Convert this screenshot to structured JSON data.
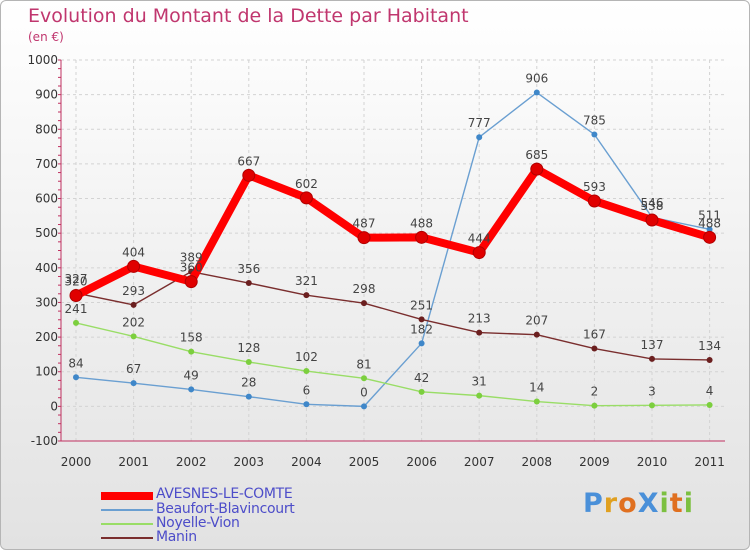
{
  "chart_data": {
    "type": "line",
    "title": "Evolution du Montant de la Dette par Habitant",
    "ylabel": "(en €)",
    "xlabel": "",
    "categories": [
      "2000",
      "2001",
      "2002",
      "2003",
      "2004",
      "2005",
      "2006",
      "2007",
      "2008",
      "2009",
      "2010",
      "2011"
    ],
    "ylim": [
      -100,
      1000
    ],
    "yticks": [
      -100,
      0,
      100,
      200,
      300,
      400,
      500,
      600,
      700,
      800,
      900,
      1000
    ],
    "grid": true,
    "legend_position": "bottom-left",
    "series": [
      {
        "name": "AVESNES-LE-COMTE",
        "color": "#ff0000",
        "marker_color": "#e00000",
        "weight": "thick",
        "values": [
          320,
          404,
          360,
          667,
          602,
          487,
          488,
          444,
          685,
          593,
          538,
          488
        ],
        "labels": [
          "320",
          "404",
          "360",
          "667",
          "602",
          "487",
          "488",
          "444",
          "685",
          "593",
          "538",
          "488"
        ]
      },
      {
        "name": "Beaufort-Blavincourt",
        "color": "#6a9fd1",
        "marker_color": "#3f87c9",
        "weight": "thin",
        "values": [
          84,
          67,
          49,
          28,
          6,
          0,
          182,
          777,
          906,
          785,
          546,
          511
        ],
        "labels": [
          "84",
          "67",
          "49",
          "28",
          "6",
          "0",
          "182",
          "777",
          "906",
          "785",
          "546",
          "511"
        ]
      },
      {
        "name": "Noyelle-Vion",
        "color": "#99dd66",
        "marker_color": "#7ccf3e",
        "weight": "thin",
        "values": [
          241,
          202,
          158,
          128,
          102,
          81,
          42,
          31,
          14,
          2,
          3,
          4
        ],
        "labels": [
          "241",
          "202",
          "158",
          "128",
          "102",
          "81",
          "42",
          "31",
          "14",
          "2",
          "3",
          "4"
        ]
      },
      {
        "name": "Manin",
        "color": "#7a2e2e",
        "marker_color": "#6b1f1f",
        "weight": "thin",
        "values": [
          327,
          293,
          389,
          356,
          321,
          298,
          251,
          213,
          207,
          167,
          137,
          134
        ],
        "labels": [
          "327",
          "293",
          "389",
          "356",
          "321",
          "298",
          "251",
          "213",
          "207",
          "167",
          "137",
          "134"
        ]
      }
    ]
  },
  "logo": {
    "text": "ProXiti",
    "colors": [
      "#4a90d9",
      "#e0a020",
      "#e07020",
      "#4a90d9",
      "#7cc040",
      "#e07020",
      "#7cc040"
    ]
  }
}
